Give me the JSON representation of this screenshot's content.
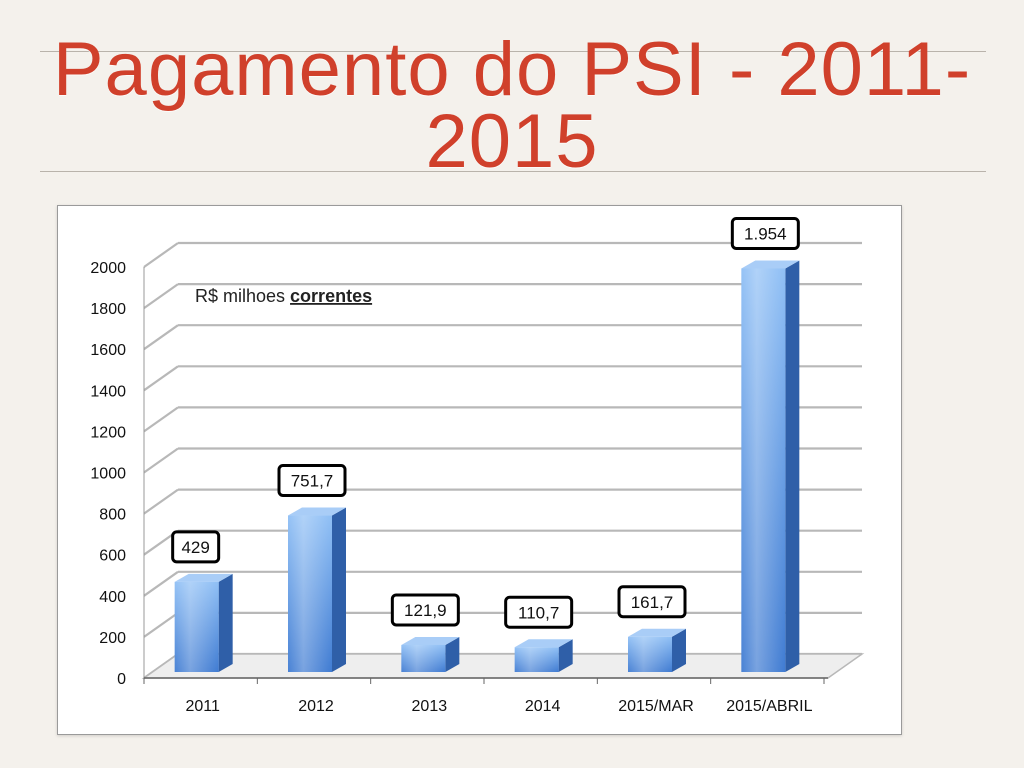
{
  "title": {
    "line1": "Pagamento do PSI  - 2011-",
    "line2": "2015"
  },
  "chart_data": {
    "type": "bar",
    "title": "",
    "annotation": {
      "prefix": "R$ milhoes ",
      "emphasis": "correntes"
    },
    "categories": [
      "2011",
      "2012",
      "2013",
      "2014",
      "2015/MAR",
      "2015/ABRIL"
    ],
    "values": [
      429,
      751.7,
      121.9,
      110.7,
      161.7,
      1954
    ],
    "data_labels": [
      "429",
      "751,7",
      "121,9",
      "110,7",
      "161,7",
      "1.954"
    ],
    "yticks": [
      "0",
      "200",
      "400",
      "600",
      "800",
      "1000",
      "1200",
      "1400",
      "1600",
      "1800",
      "2000"
    ],
    "ylim": [
      0,
      2000
    ],
    "xlabel": "",
    "ylabel": "",
    "grid": true,
    "style": "3d-bar",
    "colors": {
      "bar_front_top": "#8fbff5",
      "bar_front_bottom": "#3f7bd2",
      "bar_side": "#2f5fa8",
      "bar_top": "#a9cdf7",
      "grid": "#b8b8b8"
    }
  }
}
